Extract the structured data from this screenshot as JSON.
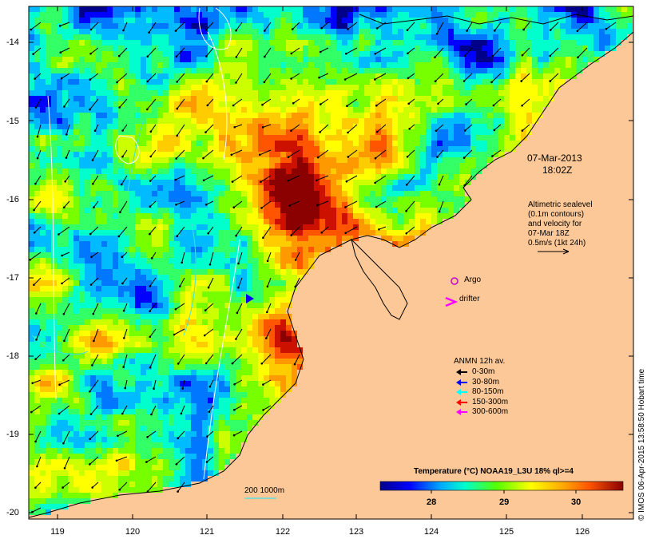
{
  "map": {
    "lat_ticks": [
      "-14",
      "-15",
      "-16",
      "-17",
      "-18",
      "-19",
      "-20"
    ],
    "lon_ticks": [
      "119",
      "120",
      "121",
      "122",
      "123",
      "124",
      "125",
      "126"
    ],
    "date_stamp": "07-Mar-2013",
    "time_stamp": "18:02Z",
    "altimetry_lines": [
      "Altimetric sealevel",
      "(0.1m contours)",
      "and velocity for",
      "07-Mar 18Z",
      "0.5m/s (1kt 24h)"
    ],
    "argo_label": "Argo",
    "drifter_label": "drifter",
    "anmn": {
      "title": "ANMN 12h av.",
      "entries": [
        {
          "label": "0-30m",
          "color": "#000000"
        },
        {
          "label": "30-80m",
          "color": "#0000ff"
        },
        {
          "label": "80-150m",
          "color": "#00ffff"
        },
        {
          "label": "150-300m",
          "color": "#ff0000"
        },
        {
          "label": "300-600m",
          "color": "#ff00ff"
        }
      ]
    },
    "colorbar": {
      "title": "Temperature (°C) NOAA19_L3U 18% ql>=4",
      "ticks": [
        "28",
        "29",
        "30"
      ]
    },
    "isobath_label": "200  1000m",
    "footer": "© IMOS 06-Apr-2015 13:58:50 Hobart time",
    "colors": {
      "land": "#fcc898",
      "argo": "#cc00cc",
      "drifter": "#ff00ff"
    }
  }
}
